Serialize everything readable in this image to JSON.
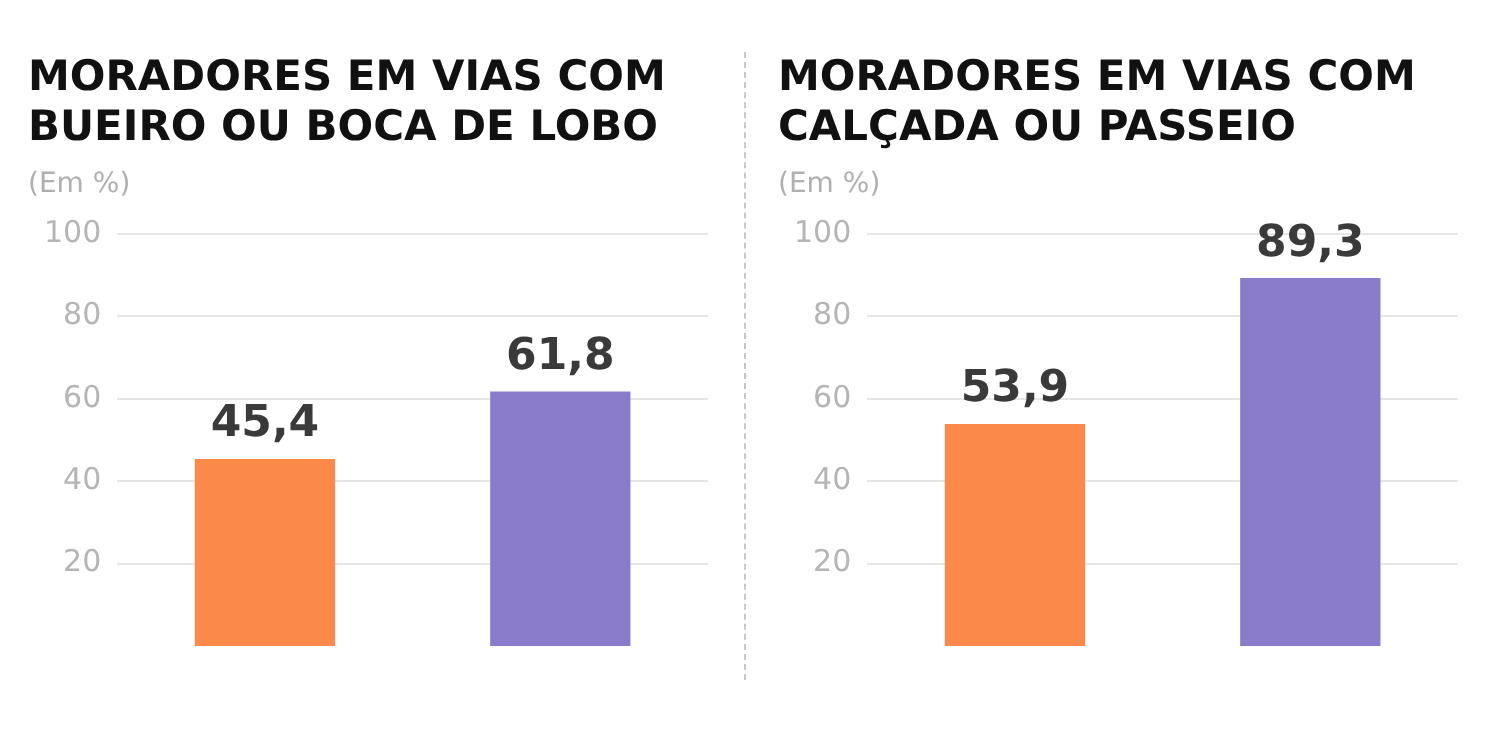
{
  "chart_data": [
    {
      "type": "bar",
      "title": "MORADORES EM VIAS COM BUEIRO OU BOCA DE LOBO",
      "subtitle": "(Em %)",
      "categories": [
        null,
        null
      ],
      "values": [
        45.4,
        61.8
      ],
      "colors": [
        "#fb8a4a",
        "#8b7bcb"
      ],
      "value_labels": [
        "45,4",
        "61,8"
      ],
      "ylim": [
        0,
        100
      ],
      "yticks": [
        20,
        40,
        60,
        80,
        100
      ],
      "grid": "y",
      "tick_labels": "y"
    },
    {
      "type": "bar",
      "title": "MORADORES EM VIAS COM CALÇADA OU PASSEIO",
      "subtitle": "(Em %)",
      "categories": [
        null,
        null
      ],
      "values": [
        53.9,
        89.3
      ],
      "colors": [
        "#fb8a4a",
        "#8b7bcb"
      ],
      "value_labels": [
        "53,9",
        "89,3"
      ],
      "ylim": [
        0,
        100
      ],
      "yticks": [
        20,
        40,
        60,
        80,
        100
      ],
      "grid": "y",
      "tick_labels": "y"
    }
  ]
}
